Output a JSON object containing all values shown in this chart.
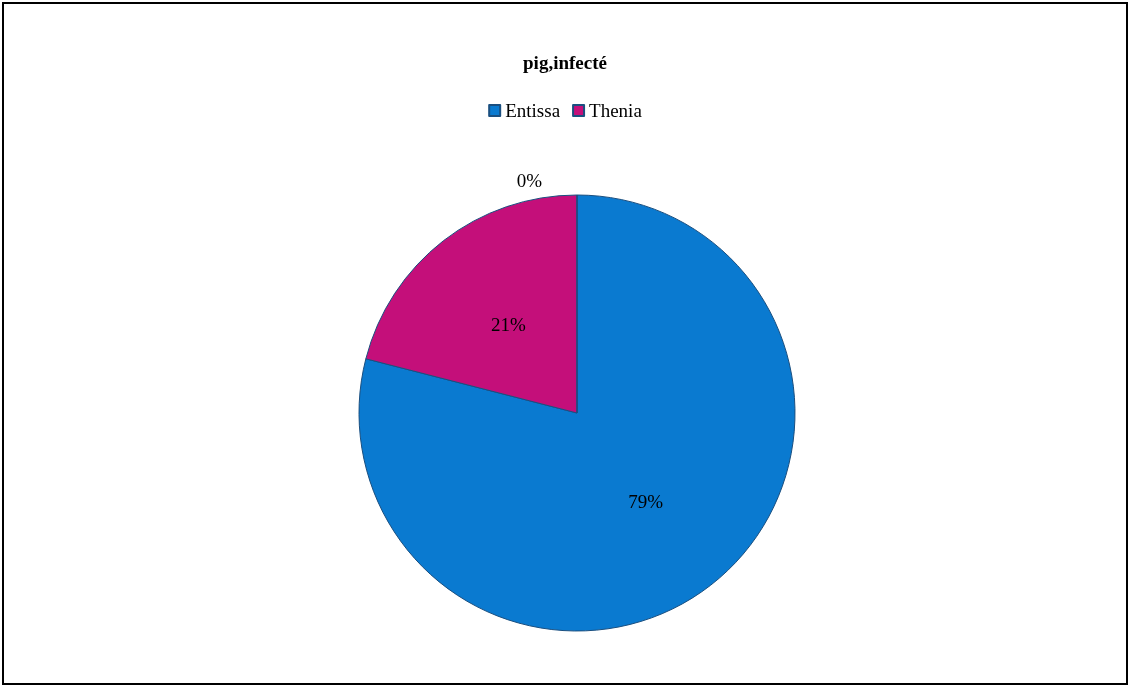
{
  "chart_data": {
    "type": "pie",
    "title": "pig,infecté",
    "categories": [
      "Entissa",
      "Thenia",
      null
    ],
    "values": [
      79,
      21,
      0
    ],
    "colors": [
      "#0a7ad0",
      "#c40f7a",
      "#9bbb59"
    ],
    "value_labels": [
      "79%",
      "21%",
      "0%"
    ],
    "legend": "top"
  }
}
